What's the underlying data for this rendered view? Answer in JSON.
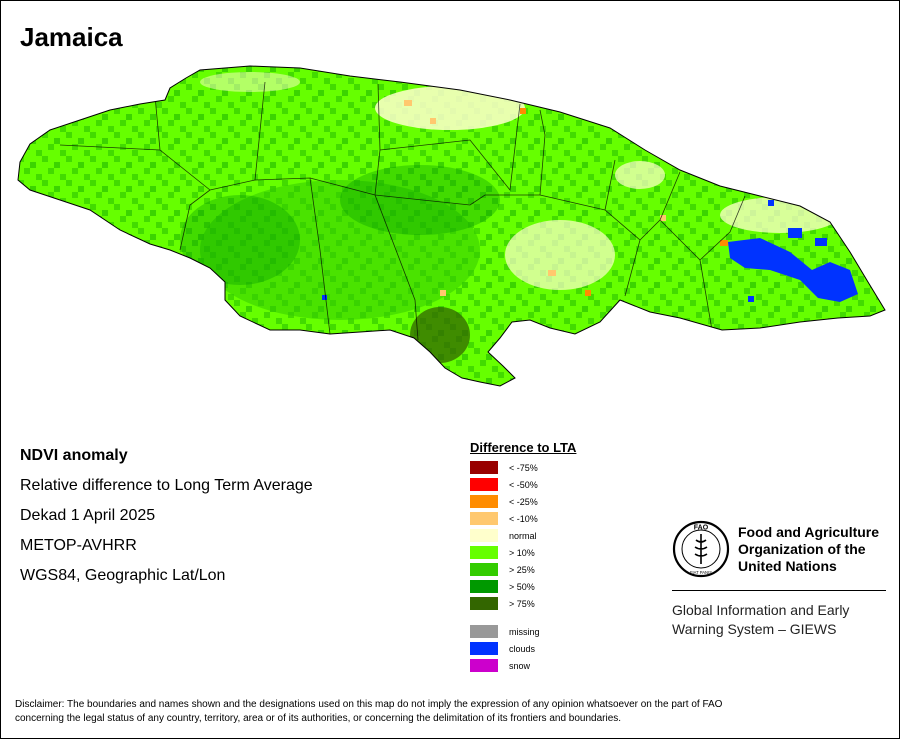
{
  "title": "Jamaica",
  "info": {
    "product": "NDVI anomaly",
    "description": "Relative difference to Long Term Average",
    "period": "Dekad 1 April 2025",
    "sensor": "METOP-AVHRR",
    "projection": "WGS84, Geographic Lat/Lon"
  },
  "legend": {
    "title": "Difference to LTA",
    "items": [
      {
        "label": "< -75%",
        "color": "#990000"
      },
      {
        "label": "< -50%",
        "color": "#ff0000"
      },
      {
        "label": "< -25%",
        "color": "#ff8c00"
      },
      {
        "label": "< -10%",
        "color": "#ffc86e"
      },
      {
        "label": "normal",
        "color": "#ffffcc"
      },
      {
        "label": "> 10%",
        "color": "#66ff00"
      },
      {
        "label": "> 25%",
        "color": "#33cc00"
      },
      {
        "label": "> 50%",
        "color": "#009900"
      },
      {
        "label": "> 75%",
        "color": "#336600"
      },
      {
        "label": "missing",
        "color": "#999999"
      },
      {
        "label": "clouds",
        "color": "#0033ff"
      },
      {
        "label": "snow",
        "color": "#cc00cc"
      }
    ]
  },
  "organization": {
    "name_line1": "Food and Agriculture",
    "name_line2": "Organization of the",
    "name_line3": "United Nations",
    "logo_letters": "FAO",
    "logo_motto": "FIAT PANIS",
    "system_line1": "Global Information and Early",
    "system_line2": "Warning System – GIEWS"
  },
  "disclaimer_line1": "Disclaimer: The boundaries and names shown and the designations used on this map do not imply the expression of any opinion whatsoever on the part of FAO",
  "disclaimer_line2": "concerning the legal status of any country, territory, area or of its authorities, or concerning the delimitation of its frontiers and boundaries."
}
